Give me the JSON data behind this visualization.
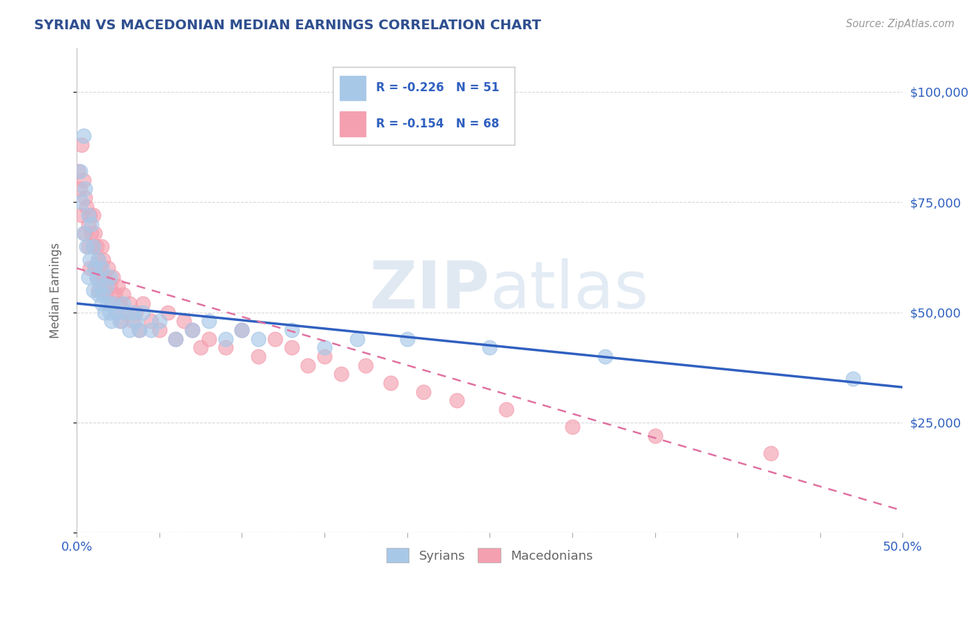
{
  "title": "SYRIAN VS MACEDONIAN MEDIAN EARNINGS CORRELATION CHART",
  "source_text": "Source: ZipAtlas.com",
  "ylabel": "Median Earnings",
  "xlim": [
    0.0,
    0.5
  ],
  "ylim": [
    0,
    110000
  ],
  "yticks": [
    0,
    25000,
    50000,
    75000,
    100000
  ],
  "ytick_labels": [
    "",
    "$25,000",
    "$50,000",
    "$75,000",
    "$100,000"
  ],
  "xticks": [
    0.0,
    0.05,
    0.1,
    0.15,
    0.2,
    0.25,
    0.3,
    0.35,
    0.4,
    0.45,
    0.5
  ],
  "xtick_labels_show": [
    "0.0%",
    "",
    "",
    "",
    "",
    "",
    "",
    "",
    "",
    "",
    "50.0%"
  ],
  "legend_r_n_blue": "R = -0.226   N = 51",
  "legend_r_n_pink": "R = -0.154   N = 68",
  "syrian_color": "#A8C8E8",
  "macedonian_color": "#F4A0B0",
  "syrian_line_color": "#3060C0",
  "macedonian_line_color": "#E070A0",
  "watermark_zip": "ZIP",
  "watermark_atlas": "atlas",
  "title_color": "#2F4F8F",
  "source_color": "#999999",
  "axis_label_color": "#666666",
  "tick_color": "#3060C0",
  "grid_color": "#D8D8D8",
  "background_color": "#FFFFFF",
  "syrians_x": [
    0.002,
    0.003,
    0.004,
    0.004,
    0.005,
    0.006,
    0.007,
    0.007,
    0.008,
    0.009,
    0.01,
    0.01,
    0.011,
    0.012,
    0.013,
    0.013,
    0.014,
    0.015,
    0.015,
    0.016,
    0.017,
    0.018,
    0.019,
    0.02,
    0.02,
    0.021,
    0.022,
    0.024,
    0.026,
    0.028,
    0.03,
    0.032,
    0.034,
    0.036,
    0.038,
    0.04,
    0.045,
    0.05,
    0.06,
    0.07,
    0.08,
    0.09,
    0.1,
    0.11,
    0.13,
    0.15,
    0.17,
    0.2,
    0.25,
    0.32,
    0.47
  ],
  "syrians_y": [
    82000,
    75000,
    90000,
    68000,
    78000,
    65000,
    72000,
    58000,
    62000,
    70000,
    55000,
    65000,
    60000,
    58000,
    54000,
    62000,
    56000,
    52000,
    60000,
    54000,
    50000,
    56000,
    52000,
    50000,
    58000,
    48000,
    52000,
    50000,
    48000,
    52000,
    50000,
    46000,
    50000,
    48000,
    46000,
    50000,
    46000,
    48000,
    44000,
    46000,
    48000,
    44000,
    46000,
    44000,
    46000,
    42000,
    44000,
    44000,
    42000,
    40000,
    35000
  ],
  "macedonians_x": [
    0.001,
    0.002,
    0.003,
    0.003,
    0.004,
    0.005,
    0.005,
    0.006,
    0.007,
    0.007,
    0.008,
    0.008,
    0.009,
    0.01,
    0.01,
    0.011,
    0.011,
    0.012,
    0.012,
    0.013,
    0.013,
    0.014,
    0.015,
    0.015,
    0.016,
    0.016,
    0.017,
    0.018,
    0.019,
    0.02,
    0.021,
    0.022,
    0.023,
    0.024,
    0.025,
    0.026,
    0.027,
    0.028,
    0.03,
    0.032,
    0.034,
    0.036,
    0.038,
    0.04,
    0.045,
    0.05,
    0.055,
    0.06,
    0.065,
    0.07,
    0.075,
    0.08,
    0.09,
    0.1,
    0.11,
    0.12,
    0.13,
    0.14,
    0.15,
    0.16,
    0.175,
    0.19,
    0.21,
    0.23,
    0.26,
    0.3,
    0.35,
    0.42
  ],
  "macedonians_y": [
    82000,
    78000,
    88000,
    72000,
    80000,
    76000,
    68000,
    74000,
    70000,
    65000,
    72000,
    60000,
    68000,
    65000,
    72000,
    60000,
    68000,
    58000,
    65000,
    62000,
    55000,
    60000,
    58000,
    65000,
    55000,
    62000,
    58000,
    54000,
    60000,
    56000,
    52000,
    58000,
    54000,
    50000,
    56000,
    52000,
    48000,
    54000,
    50000,
    52000,
    48000,
    50000,
    46000,
    52000,
    48000,
    46000,
    50000,
    44000,
    48000,
    46000,
    42000,
    44000,
    42000,
    46000,
    40000,
    44000,
    42000,
    38000,
    40000,
    36000,
    38000,
    34000,
    32000,
    30000,
    28000,
    24000,
    22000,
    18000
  ],
  "syrian_trendline_y0": 52000,
  "syrian_trendline_y1": 33000,
  "macedonian_trendline_y0": 60000,
  "macedonian_trendline_y1": 5000
}
